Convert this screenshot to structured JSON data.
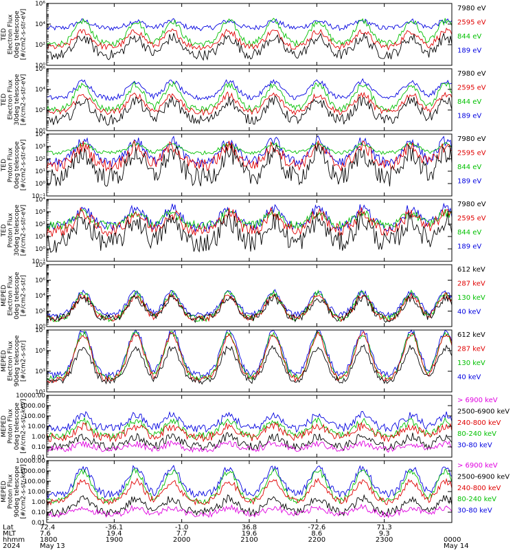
{
  "chart_data": {
    "type": "line",
    "title": "",
    "panels": [
      {
        "ylabel": [
          "TED",
          "Electron Flux",
          "0deg telescope",
          "[#/cm2-s-str-eV]"
        ],
        "log": true,
        "ylim": [
          1,
          1000000
        ],
        "ticks": [
          {
            "v": 1,
            "t": "10⁰"
          },
          {
            "v": 100,
            "t": "10²"
          },
          {
            "v": 10000,
            "t": "10⁴"
          },
          {
            "v": 1000000,
            "t": "10⁶"
          }
        ],
        "legend": [
          {
            "label": "7980 eV",
            "color": "#000000"
          },
          {
            "label": "2595 eV",
            "color": "#e00000"
          },
          {
            "label": "844 eV",
            "color": "#00c000"
          },
          {
            "label": "189 eV",
            "color": "#0000e0"
          }
        ],
        "series": [
          {
            "name": "189 eV",
            "color": "#0000e0",
            "base": 4000,
            "peak": 20000,
            "noise": 0.25
          },
          {
            "name": "844 eV",
            "color": "#00c000",
            "base": 120,
            "peak": 20000,
            "noise": 0.3
          },
          {
            "name": "2595 eV",
            "color": "#e00000",
            "base": 60,
            "peak": 2000,
            "noise": 0.3
          },
          {
            "name": "7980 eV",
            "color": "#000000",
            "base": 10,
            "peak": 500,
            "noise": 0.5
          }
        ]
      },
      {
        "ylabel": [
          "TED",
          "Electron Flux",
          "30deg telescope",
          "[#/cm2-s-str-eV]"
        ],
        "log": true,
        "ylim": [
          1,
          1000000
        ],
        "ticks": [
          {
            "v": 1,
            "t": "10⁰"
          },
          {
            "v": 100,
            "t": "10²"
          },
          {
            "v": 10000,
            "t": "10⁴"
          },
          {
            "v": 1000000,
            "t": "10⁶"
          }
        ],
        "legend": [
          {
            "label": "7980 eV",
            "color": "#000000"
          },
          {
            "label": "2595 eV",
            "color": "#e00000"
          },
          {
            "label": "844 eV",
            "color": "#00c000"
          },
          {
            "label": "189 eV",
            "color": "#0000e0"
          }
        ],
        "series": [
          {
            "name": "189 eV",
            "color": "#0000e0",
            "base": 1500,
            "peak": 60000,
            "noise": 0.25
          },
          {
            "name": "844 eV",
            "color": "#00c000",
            "base": 120,
            "peak": 30000,
            "noise": 0.3
          },
          {
            "name": "2595 eV",
            "color": "#e00000",
            "base": 60,
            "peak": 3000,
            "noise": 0.3
          },
          {
            "name": "7980 eV",
            "color": "#000000",
            "base": 10,
            "peak": 800,
            "noise": 0.5
          }
        ]
      },
      {
        "ylabel": [
          "TED",
          "Proton Flux",
          "0deg telescope",
          "[#/cm2-s-str-eV]"
        ],
        "log": true,
        "ylim": [
          0.1,
          10000
        ],
        "ticks": [
          {
            "v": 0.1,
            "t": "10⁻¹"
          },
          {
            "v": 1,
            "t": "10⁰"
          },
          {
            "v": 10,
            "t": "10¹"
          },
          {
            "v": 100,
            "t": "10²"
          },
          {
            "v": 1000,
            "t": "10³"
          },
          {
            "v": 10000,
            "t": "10⁴"
          }
        ],
        "legend": [
          {
            "label": "7980 eV",
            "color": "#000000"
          },
          {
            "label": "2595 eV",
            "color": "#e00000"
          },
          {
            "label": "844 eV",
            "color": "#00c000"
          },
          {
            "label": "189 eV",
            "color": "#0000e0"
          }
        ],
        "series": [
          {
            "name": "189 eV",
            "color": "#0000e0",
            "base": 50,
            "peak": 3000,
            "noise": 0.4
          },
          {
            "name": "844 eV",
            "color": "#00c000",
            "base": 300,
            "peak": 1500,
            "noise": 0.15
          },
          {
            "name": "2595 eV",
            "color": "#e00000",
            "base": 30,
            "peak": 1000,
            "noise": 0.5
          },
          {
            "name": "7980 eV",
            "color": "#000000",
            "base": 3,
            "peak": 300,
            "noise": 0.8
          }
        ]
      },
      {
        "ylabel": [
          "TED",
          "Proton Flux",
          "30deg telescope",
          "[#/cm2-s-str-eV]"
        ],
        "log": true,
        "ylim": [
          0.1,
          10000
        ],
        "ticks": [
          {
            "v": 0.1,
            "t": "10⁻¹"
          },
          {
            "v": 1,
            "t": "10⁰"
          },
          {
            "v": 10,
            "t": "10¹"
          },
          {
            "v": 100,
            "t": "10²"
          },
          {
            "v": 1000,
            "t": "10³"
          },
          {
            "v": 10000,
            "t": "10⁴"
          }
        ],
        "legend": [
          {
            "label": "7980 eV",
            "color": "#000000"
          },
          {
            "label": "2595 eV",
            "color": "#e00000"
          },
          {
            "label": "844 eV",
            "color": "#00c000"
          },
          {
            "label": "189 eV",
            "color": "#0000e0"
          }
        ],
        "series": [
          {
            "name": "189 eV",
            "color": "#0000e0",
            "base": 60,
            "peak": 2000,
            "noise": 0.4
          },
          {
            "name": "844 eV",
            "color": "#00c000",
            "base": 80,
            "peak": 800,
            "noise": 0.35
          },
          {
            "name": "2595 eV",
            "color": "#e00000",
            "base": 30,
            "peak": 800,
            "noise": 0.5
          },
          {
            "name": "7980 eV",
            "color": "#000000",
            "base": 3,
            "peak": 200,
            "noise": 0.8
          }
        ]
      },
      {
        "ylabel": [
          "MEPED",
          "Electron Flux",
          "0deg telescope",
          "[#/cm2-s-str]"
        ],
        "log": true,
        "ylim": [
          1,
          100000000
        ],
        "ticks": [
          {
            "v": 1,
            "t": "10⁰"
          },
          {
            "v": 100,
            "t": "10²"
          },
          {
            "v": 10000,
            "t": "10⁴"
          },
          {
            "v": 1000000,
            "t": "10⁶"
          },
          {
            "v": 100000000,
            "t": "10⁸"
          }
        ],
        "legend": [
          {
            "label": "612 keV",
            "color": "#000000"
          },
          {
            "label": "287 keV",
            "color": "#e00000"
          },
          {
            "label": "130 keV",
            "color": "#00c000"
          },
          {
            "label": "40 keV",
            "color": "#0000e0"
          }
        ],
        "series": [
          {
            "name": "40 keV",
            "color": "#0000e0",
            "base": 30,
            "peak": 30000,
            "noise": 0.35
          },
          {
            "name": "130 keV",
            "color": "#00c000",
            "base": 10,
            "peak": 20000,
            "noise": 0.4
          },
          {
            "name": "287 keV",
            "color": "#e00000",
            "base": 10,
            "peak": 10000,
            "noise": 0.4
          },
          {
            "name": "612 keV",
            "color": "#000000",
            "base": 10,
            "peak": 5000,
            "noise": 0.5
          }
        ]
      },
      {
        "ylabel": [
          "MEPED",
          "Electron Flux",
          "90deg telescope",
          "[#/cm2-s-str]"
        ],
        "log": true,
        "ylim": [
          10,
          10000000
        ],
        "ticks": [
          {
            "v": 10,
            "t": "10¹"
          },
          {
            "v": 1000,
            "t": "10³"
          },
          {
            "v": 100000,
            "t": "10⁵"
          },
          {
            "v": 10000000,
            "t": "10⁷"
          }
        ],
        "legend": [
          {
            "label": "612 keV",
            "color": "#000000"
          },
          {
            "label": "287 keV",
            "color": "#e00000"
          },
          {
            "label": "130 keV",
            "color": "#00c000"
          },
          {
            "label": "40 keV",
            "color": "#0000e0"
          }
        ],
        "series": [
          {
            "name": "40 keV",
            "color": "#0000e0",
            "base": 400,
            "peak": 8000000,
            "noise": 0.3
          },
          {
            "name": "130 keV",
            "color": "#00c000",
            "base": 200,
            "peak": 5000000,
            "noise": 0.3
          },
          {
            "name": "287 keV",
            "color": "#e00000",
            "base": 150,
            "peak": 4000000,
            "noise": 0.3
          },
          {
            "name": "612 keV",
            "color": "#000000",
            "base": 100,
            "peak": 200000,
            "noise": 0.3
          }
        ]
      },
      {
        "ylabel": [
          "MEPED",
          "Proton Flux",
          "0deg telescope",
          "[#/cm2-s-str-keV]"
        ],
        "log": true,
        "ylim": [
          0.01,
          10000
        ],
        "ticks": [
          {
            "v": 0.01,
            "t": "0.01"
          },
          {
            "v": 0.1,
            "t": "0.10"
          },
          {
            "v": 1,
            "t": "1.00"
          },
          {
            "v": 10,
            "t": "10.00"
          },
          {
            "v": 100,
            "t": "100.00"
          },
          {
            "v": 1000,
            "t": "1000.00"
          },
          {
            "v": 10000,
            "t": "10000.00"
          }
        ],
        "legend": [
          {
            "label": "> 6900 keV",
            "color": "#e000e0"
          },
          {
            "label": "2500-6900 keV",
            "color": "#000000"
          },
          {
            "label": "240-800 keV",
            "color": "#e00000"
          },
          {
            "label": "80-240 keV",
            "color": "#00c000"
          },
          {
            "label": "30-80 keV",
            "color": "#0000e0"
          }
        ],
        "series": [
          {
            "name": "30-80 keV",
            "color": "#0000e0",
            "base": 6,
            "peak": 120,
            "noise": 0.4
          },
          {
            "name": "80-240 keV",
            "color": "#00c000",
            "base": 1.2,
            "peak": 30,
            "noise": 0.35
          },
          {
            "name": "240-800 keV",
            "color": "#e00000",
            "base": 0.8,
            "peak": 10,
            "noise": 0.4
          },
          {
            "name": "2500-6900 keV",
            "color": "#000000",
            "base": 0.1,
            "peak": 1,
            "noise": 0.4
          },
          {
            "name": "> 6900 keV",
            "color": "#e000e0",
            "base": 0.06,
            "peak": 0.2,
            "noise": 0.3
          }
        ]
      },
      {
        "ylabel": [
          "MEPED",
          "Proton Flux",
          "90deg telescope",
          "[#/cm2-s-str-keV]"
        ],
        "log": true,
        "ylim": [
          0.01,
          10000
        ],
        "ticks": [
          {
            "v": 0.01,
            "t": "0.01"
          },
          {
            "v": 0.1,
            "t": "0.10"
          },
          {
            "v": 1,
            "t": "1.00"
          },
          {
            "v": 10,
            "t": "10.00"
          },
          {
            "v": 100,
            "t": "100.00"
          },
          {
            "v": 1000,
            "t": "1000.00"
          },
          {
            "v": 10000,
            "t": "10000.00"
          }
        ],
        "legend": [
          {
            "label": "> 6900 keV",
            "color": "#e000e0"
          },
          {
            "label": "2500-6900 keV",
            "color": "#000000"
          },
          {
            "label": "240-800 keV",
            "color": "#e00000"
          },
          {
            "label": "80-240 keV",
            "color": "#00c000"
          },
          {
            "label": "30-80 keV",
            "color": "#0000e0"
          }
        ],
        "series": [
          {
            "name": "30-80 keV",
            "color": "#0000e0",
            "base": 5,
            "peak": 2000,
            "noise": 0.35
          },
          {
            "name": "80-240 keV",
            "color": "#00c000",
            "base": 1.2,
            "peak": 1000,
            "noise": 0.3
          },
          {
            "name": "240-800 keV",
            "color": "#e00000",
            "base": 1,
            "peak": 100,
            "noise": 0.3
          },
          {
            "name": "2500-6900 keV",
            "color": "#000000",
            "base": 0.1,
            "peak": 2,
            "noise": 0.4
          },
          {
            "name": "> 6900 keV",
            "color": "#e000e0",
            "base": 0.06,
            "peak": 0.3,
            "noise": 0.3
          }
        ]
      }
    ],
    "passes": [
      0.09,
      0.22,
      0.31,
      0.45,
      0.56,
      0.67,
      0.78,
      0.9,
      0.985
    ],
    "xaxis": {
      "labels": [
        "Lat",
        "MLT",
        "hhmm",
        "2024"
      ],
      "columns": [
        {
          "v": 0.0,
          "vals": [
            "72.4",
            "7.6",
            "1800",
            "May 13"
          ]
        },
        {
          "v": 0.1667,
          "vals": [
            "-36.1",
            "19.4",
            "1900",
            ""
          ]
        },
        {
          "v": 0.3333,
          "vals": [
            "-1.0",
            "7.7",
            "2000",
            ""
          ]
        },
        {
          "v": 0.5,
          "vals": [
            "36.8",
            "19.6",
            "2100",
            ""
          ]
        },
        {
          "v": 0.6667,
          "vals": [
            "-72.6",
            "8.6",
            "2200",
            ""
          ]
        },
        {
          "v": 0.8333,
          "vals": [
            "71.3",
            "9.3",
            "2300",
            ""
          ]
        },
        {
          "v": 1.0,
          "vals": [
            "",
            "",
            "0000",
            "May 14"
          ]
        }
      ]
    }
  }
}
